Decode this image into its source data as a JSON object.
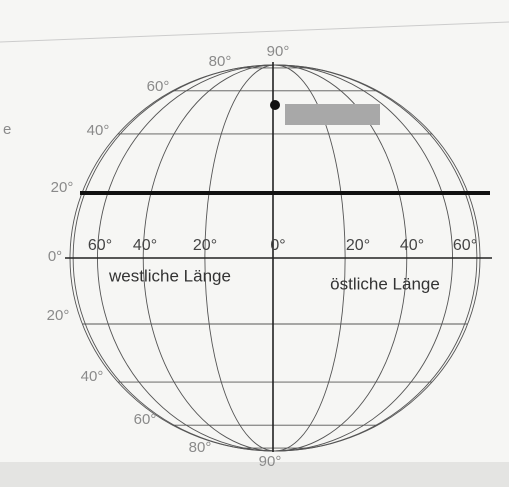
{
  "margin_fragment": "e",
  "latitude_labels": {
    "north": [
      "90°",
      "80°",
      "60°",
      "40°",
      "20°",
      "0°"
    ],
    "south": [
      "20°",
      "40°",
      "60°",
      "80°",
      "90°"
    ]
  },
  "longitude_labels": [
    "60°",
    "40°",
    "20°",
    "0°",
    "20°",
    "40°",
    "60°"
  ],
  "hemisphere_labels": {
    "west": "westliche Länge",
    "east": "östliche Länge"
  }
}
